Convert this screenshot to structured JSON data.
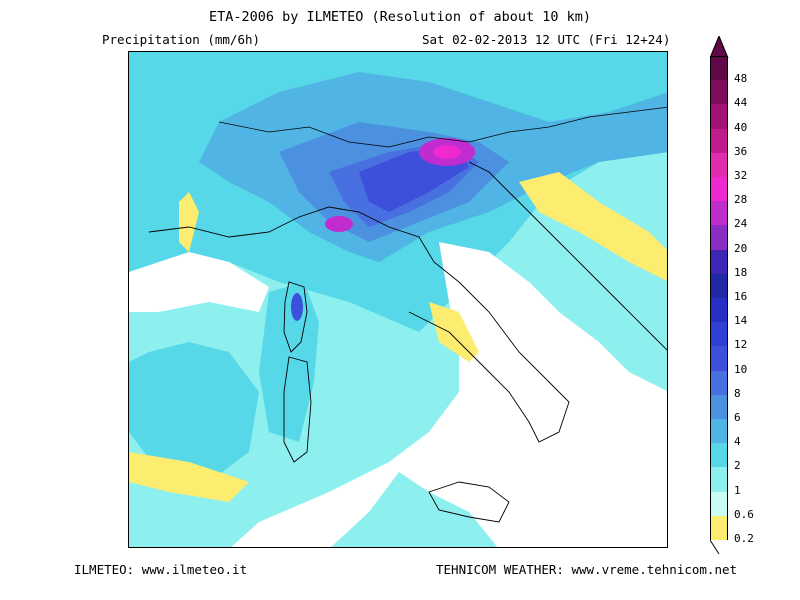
{
  "header": {
    "title": "ETA-2006 by ILMETEO (Resolution of about 10 km)",
    "variable": "Precipitation (mm/6h)",
    "valid_time": "Sat 02-02-2013 12 UTC (Fri 12+24)"
  },
  "footer": {
    "left": "ILMETEO: www.ilmeteo.it",
    "right": "TEHNICOM WEATHER: www.vreme.tehnicom.net"
  },
  "legend": {
    "levels": [
      {
        "label": "0.2",
        "color": "#fcec70"
      },
      {
        "label": "0.6",
        "color": "#c8fcf4"
      },
      {
        "label": "1",
        "color": "#8ef0ee"
      },
      {
        "label": "2",
        "color": "#56d8e8"
      },
      {
        "label": "4",
        "color": "#50b4e4"
      },
      {
        "label": "6",
        "color": "#4c90e0"
      },
      {
        "label": "8",
        "color": "#4870e0"
      },
      {
        "label": "10",
        "color": "#3c50dc"
      },
      {
        "label": "12",
        "color": "#3040d4"
      },
      {
        "label": "14",
        "color": "#2830c4"
      },
      {
        "label": "16",
        "color": "#2028a8"
      },
      {
        "label": "18",
        "color": "#3c28b4"
      },
      {
        "label": "20",
        "color": "#8c2cc4"
      },
      {
        "label": "24",
        "color": "#c02cd0"
      },
      {
        "label": "28",
        "color": "#f028d0"
      },
      {
        "label": "32",
        "color": "#e02cb0"
      },
      {
        "label": "36",
        "color": "#c01c8c"
      },
      {
        "label": "40",
        "color": "#a01474"
      },
      {
        "label": "44",
        "color": "#800c5c"
      },
      {
        "label": "48",
        "color": "#600848"
      }
    ]
  }
}
